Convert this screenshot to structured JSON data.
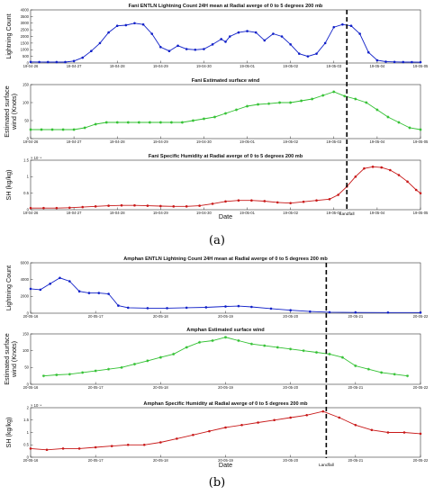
{
  "panels": [
    {
      "caption": "(a)",
      "xlabel": "Date",
      "landfall_label": "Landfall",
      "landfall_x": 7.3,
      "x_ticks": [
        "19-04-26",
        "19-04-27",
        "19-04-28",
        "19-04-29",
        "19-04-30",
        "19-05-01",
        "19-05-02",
        "19-05-03",
        "19-05-04",
        "19-05-05"
      ],
      "subplots": [
        {
          "title": "Fani ENTLN Lightning Count 24H mean at Radial averge of 0 to 5 degrees 200 mb",
          "ylabel": "Lightning Count",
          "ylim": [
            0,
            4000
          ],
          "yticks": [
            "0",
            "500",
            "1000",
            "1500",
            "2000",
            "2500",
            "3000",
            "3500",
            "4000"
          ],
          "color": "#1020c8",
          "marker": "dot",
          "points": [
            [
              0.0,
              80
            ],
            [
              0.2,
              75
            ],
            [
              0.4,
              70
            ],
            [
              0.6,
              70
            ],
            [
              0.8,
              70
            ],
            [
              1.0,
              150
            ],
            [
              1.2,
              400
            ],
            [
              1.4,
              900
            ],
            [
              1.6,
              1500
            ],
            [
              1.8,
              2300
            ],
            [
              2.0,
              2800
            ],
            [
              2.2,
              2850
            ],
            [
              2.4,
              3000
            ],
            [
              2.6,
              2900
            ],
            [
              2.8,
              2200
            ],
            [
              3.0,
              1200
            ],
            [
              3.2,
              900
            ],
            [
              3.4,
              1300
            ],
            [
              3.6,
              1050
            ],
            [
              3.8,
              1000
            ],
            [
              4.0,
              1050
            ],
            [
              4.2,
              1400
            ],
            [
              4.4,
              1800
            ],
            [
              4.5,
              1600
            ],
            [
              4.6,
              2000
            ],
            [
              4.8,
              2300
            ],
            [
              5.0,
              2400
            ],
            [
              5.2,
              2300
            ],
            [
              5.4,
              1700
            ],
            [
              5.6,
              2200
            ],
            [
              5.8,
              2000
            ],
            [
              6.0,
              1400
            ],
            [
              6.2,
              700
            ],
            [
              6.4,
              500
            ],
            [
              6.6,
              700
            ],
            [
              6.8,
              1500
            ],
            [
              7.0,
              2700
            ],
            [
              7.2,
              2900
            ],
            [
              7.4,
              2800
            ],
            [
              7.6,
              2200
            ],
            [
              7.8,
              800
            ],
            [
              8.0,
              200
            ],
            [
              8.2,
              100
            ],
            [
              8.4,
              80
            ],
            [
              8.6,
              70
            ],
            [
              8.8,
              65
            ],
            [
              9.0,
              60
            ]
          ]
        },
        {
          "title": "Fani Estimated surface wind",
          "ylabel": "Estimated surface wind (Knots)",
          "ylim": [
            0,
            150
          ],
          "yticks": [
            "0",
            "50",
            "100",
            "150"
          ],
          "color": "#30c030",
          "marker": "star",
          "points": [
            [
              0.0,
              25
            ],
            [
              0.25,
              25
            ],
            [
              0.5,
              25
            ],
            [
              0.75,
              25
            ],
            [
              1.0,
              25
            ],
            [
              1.25,
              30
            ],
            [
              1.5,
              40
            ],
            [
              1.75,
              45
            ],
            [
              2.0,
              45
            ],
            [
              2.25,
              45
            ],
            [
              2.5,
              45
            ],
            [
              2.75,
              45
            ],
            [
              3.0,
              45
            ],
            [
              3.25,
              45
            ],
            [
              3.5,
              45
            ],
            [
              3.75,
              50
            ],
            [
              4.0,
              55
            ],
            [
              4.25,
              60
            ],
            [
              4.5,
              70
            ],
            [
              4.75,
              80
            ],
            [
              5.0,
              90
            ],
            [
              5.25,
              95
            ],
            [
              5.5,
              97
            ],
            [
              5.75,
              100
            ],
            [
              6.0,
              100
            ],
            [
              6.25,
              105
            ],
            [
              6.5,
              110
            ],
            [
              6.75,
              120
            ],
            [
              7.0,
              130
            ],
            [
              7.25,
              118
            ],
            [
              7.5,
              110
            ],
            [
              7.75,
              100
            ],
            [
              8.0,
              80
            ],
            [
              8.25,
              60
            ],
            [
              8.5,
              45
            ],
            [
              8.75,
              30
            ],
            [
              9.0,
              25
            ]
          ]
        },
        {
          "title": "Fani Specific Humidity at Radial averge of 0 to 5 degrees 200 mb",
          "ylabel": "SH (kg/kg)",
          "exponent": "× 10⁻⁴",
          "ylim": [
            0,
            1.5
          ],
          "yticks": [
            "0",
            "0.5",
            "1",
            "1.5"
          ],
          "color": "#c81818",
          "marker": "dot",
          "points": [
            [
              0.0,
              0.05
            ],
            [
              0.3,
              0.05
            ],
            [
              0.6,
              0.05
            ],
            [
              0.9,
              0.06
            ],
            [
              1.2,
              0.08
            ],
            [
              1.5,
              0.1
            ],
            [
              1.8,
              0.12
            ],
            [
              2.1,
              0.13
            ],
            [
              2.4,
              0.13
            ],
            [
              2.7,
              0.12
            ],
            [
              3.0,
              0.11
            ],
            [
              3.3,
              0.1
            ],
            [
              3.6,
              0.1
            ],
            [
              3.9,
              0.12
            ],
            [
              4.2,
              0.18
            ],
            [
              4.5,
              0.25
            ],
            [
              4.8,
              0.28
            ],
            [
              5.1,
              0.28
            ],
            [
              5.4,
              0.26
            ],
            [
              5.7,
              0.22
            ],
            [
              6.0,
              0.2
            ],
            [
              6.3,
              0.24
            ],
            [
              6.6,
              0.28
            ],
            [
              6.9,
              0.32
            ],
            [
              7.1,
              0.45
            ],
            [
              7.3,
              0.7
            ],
            [
              7.5,
              1.0
            ],
            [
              7.7,
              1.25
            ],
            [
              7.9,
              1.3
            ],
            [
              8.1,
              1.28
            ],
            [
              8.3,
              1.2
            ],
            [
              8.5,
              1.05
            ],
            [
              8.7,
              0.85
            ],
            [
              8.9,
              0.6
            ],
            [
              9.0,
              0.5
            ]
          ]
        }
      ]
    },
    {
      "caption": "(b)",
      "xlabel": "Date",
      "landfall_label": "Landfall",
      "landfall_x": 4.55,
      "x_ticks": [
        "20-05-16",
        "20-05-17",
        "20-05-18",
        "20-05-19",
        "20-05-20",
        "20-05-21",
        "20-05-22"
      ],
      "subplots": [
        {
          "title": "Amphan ENTLN Lightning Count 24H mean at Radial averge of 0 to 5 degrees 200 mb",
          "ylabel": "Lightning Count",
          "ylim": [
            0,
            6000
          ],
          "yticks": [
            "0",
            "2000",
            "4000",
            "6000"
          ],
          "color": "#1020c8",
          "marker": "dot",
          "points": [
            [
              0.0,
              2900
            ],
            [
              0.15,
              2800
            ],
            [
              0.3,
              3500
            ],
            [
              0.45,
              4200
            ],
            [
              0.6,
              3800
            ],
            [
              0.75,
              2600
            ],
            [
              0.9,
              2400
            ],
            [
              1.05,
              2400
            ],
            [
              1.2,
              2300
            ],
            [
              1.35,
              900
            ],
            [
              1.5,
              650
            ],
            [
              1.8,
              600
            ],
            [
              2.1,
              600
            ],
            [
              2.4,
              650
            ],
            [
              2.7,
              700
            ],
            [
              3.0,
              800
            ],
            [
              3.2,
              850
            ],
            [
              3.4,
              750
            ],
            [
              3.7,
              550
            ],
            [
              4.0,
              350
            ],
            [
              4.3,
              200
            ],
            [
              4.6,
              120
            ],
            [
              5.0,
              90
            ],
            [
              5.5,
              80
            ],
            [
              6.0,
              70
            ]
          ]
        },
        {
          "title": "Amphan Estimated surface wind",
          "ylabel": "Estimated surface wind (Knots)",
          "ylim": [
            0,
            150
          ],
          "yticks": [
            "0",
            "50",
            "100",
            "150"
          ],
          "color": "#30c030",
          "marker": "star",
          "points": [
            [
              0.2,
              25
            ],
            [
              0.4,
              28
            ],
            [
              0.6,
              30
            ],
            [
              0.8,
              35
            ],
            [
              1.0,
              40
            ],
            [
              1.2,
              45
            ],
            [
              1.4,
              50
            ],
            [
              1.6,
              60
            ],
            [
              1.8,
              70
            ],
            [
              2.0,
              80
            ],
            [
              2.2,
              90
            ],
            [
              2.4,
              110
            ],
            [
              2.6,
              125
            ],
            [
              2.8,
              130
            ],
            [
              3.0,
              140
            ],
            [
              3.2,
              130
            ],
            [
              3.4,
              120
            ],
            [
              3.6,
              115
            ],
            [
              3.8,
              110
            ],
            [
              4.0,
              105
            ],
            [
              4.2,
              100
            ],
            [
              4.4,
              95
            ],
            [
              4.6,
              90
            ],
            [
              4.8,
              80
            ],
            [
              5.0,
              55
            ],
            [
              5.2,
              45
            ],
            [
              5.4,
              35
            ],
            [
              5.6,
              30
            ],
            [
              5.8,
              25
            ]
          ]
        },
        {
          "title": "Amphan Specific Humidity at Radial averge of 0 to 5 degrees 200 mb",
          "ylabel": "SH (kg/kg)",
          "exponent": "× 10⁻⁴",
          "ylim": [
            0,
            2
          ],
          "yticks": [
            "0",
            "0.5",
            "1",
            "1.5",
            "2"
          ],
          "color": "#c81818",
          "marker": "dot",
          "points": [
            [
              0.0,
              0.35
            ],
            [
              0.25,
              0.3
            ],
            [
              0.5,
              0.35
            ],
            [
              0.75,
              0.35
            ],
            [
              1.0,
              0.4
            ],
            [
              1.25,
              0.45
            ],
            [
              1.5,
              0.5
            ],
            [
              1.75,
              0.5
            ],
            [
              2.0,
              0.6
            ],
            [
              2.25,
              0.75
            ],
            [
              2.5,
              0.9
            ],
            [
              2.75,
              1.05
            ],
            [
              3.0,
              1.2
            ],
            [
              3.25,
              1.3
            ],
            [
              3.5,
              1.4
            ],
            [
              3.75,
              1.5
            ],
            [
              4.0,
              1.6
            ],
            [
              4.25,
              1.7
            ],
            [
              4.5,
              1.85
            ],
            [
              4.75,
              1.6
            ],
            [
              5.0,
              1.3
            ],
            [
              5.25,
              1.1
            ],
            [
              5.5,
              1.0
            ],
            [
              5.75,
              1.0
            ],
            [
              6.0,
              0.95
            ]
          ]
        }
      ]
    }
  ]
}
